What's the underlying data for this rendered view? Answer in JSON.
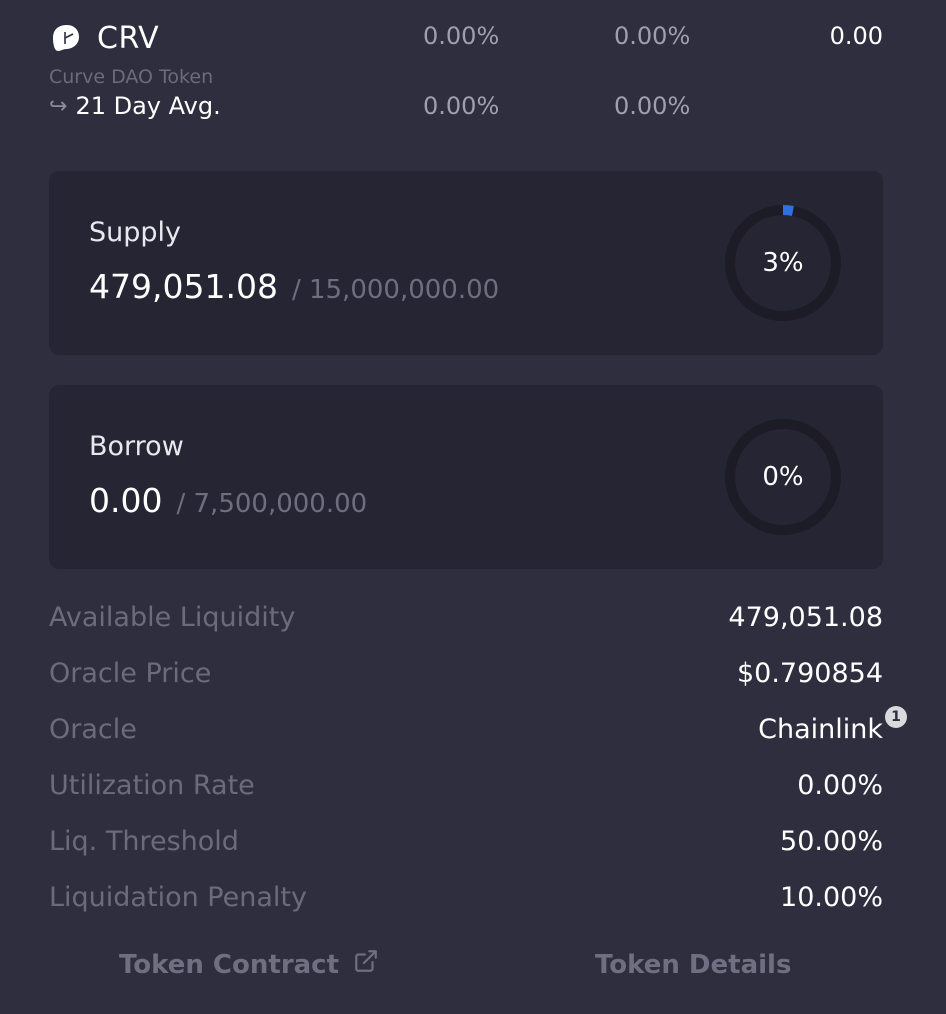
{
  "token": {
    "symbol": "CRV",
    "name": "Curve DAO Token",
    "logo_icon": "curve-logo-icon",
    "row1": {
      "col1": "0.00%",
      "col2": "0.00%",
      "col3": "0.00"
    },
    "avg": {
      "arrow_icon": "return-arrow-icon",
      "label": "21 Day Avg.",
      "col1": "0.00%",
      "col2": "0.00%"
    }
  },
  "supply": {
    "title": "Supply",
    "current": "479,051.08",
    "cap": "/ 15,000,000.00",
    "percent_label": "3%",
    "percent_value": 3
  },
  "borrow": {
    "title": "Borrow",
    "current": "0.00",
    "cap": "/ 7,500,000.00",
    "percent_label": "0%",
    "percent_value": 0
  },
  "stats": [
    {
      "label": "Available Liquidity",
      "value": "479,051.08"
    },
    {
      "label": "Oracle Price",
      "value": "$0.790854"
    },
    {
      "label": "Oracle",
      "value": "Chainlink",
      "badge": "1"
    },
    {
      "label": "Utilization Rate",
      "value": "0.00%"
    },
    {
      "label": "Liq. Threshold",
      "value": "50.00%"
    },
    {
      "label": "Liquidation Penalty",
      "value": "10.00%"
    }
  ],
  "links": {
    "contract": "Token Contract",
    "contract_icon": "external-link-icon",
    "details": "Token Details"
  },
  "colors": {
    "background": "#2f2e3e",
    "card": "#262534",
    "ring_track": "#1c1b26",
    "ring_fill": "#2f6fe4",
    "muted_text": "#6b6b7e"
  }
}
